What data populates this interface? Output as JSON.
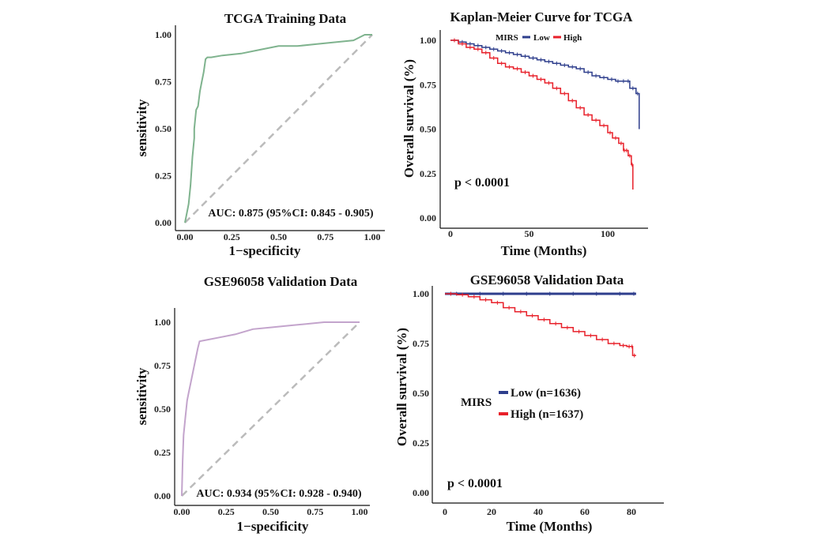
{
  "chart_data": [
    {
      "id": "roc-tcga",
      "type": "line",
      "title": "TCGA Training Data",
      "xlabel": "1−specificity",
      "ylabel": "sensitivity",
      "xlim": [
        0,
        1
      ],
      "ylim": [
        0,
        1
      ],
      "xticks": [
        "0.00",
        "0.25",
        "0.50",
        "0.75",
        "1.00"
      ],
      "yticks": [
        "0.00",
        "0.25",
        "0.50",
        "0.75",
        "1.00"
      ],
      "annotation": "AUC: 0.875 (95%CI: 0.845 - 0.905)",
      "colors": {
        "curve": "#7FB38E",
        "diagonal": "#BBBBBB"
      },
      "curve": {
        "x": [
          0,
          0.01,
          0.02,
          0.03,
          0.04,
          0.05,
          0.05,
          0.06,
          0.07,
          0.08,
          0.09,
          0.1,
          0.11,
          0.12,
          0.14,
          0.2,
          0.3,
          0.4,
          0.5,
          0.6,
          0.7,
          0.8,
          0.9,
          0.96,
          1.0
        ],
        "y": [
          0,
          0.05,
          0.1,
          0.2,
          0.35,
          0.45,
          0.5,
          0.6,
          0.62,
          0.7,
          0.75,
          0.8,
          0.87,
          0.88,
          0.88,
          0.89,
          0.9,
          0.92,
          0.94,
          0.94,
          0.95,
          0.96,
          0.97,
          1.0,
          1.0
        ]
      }
    },
    {
      "id": "km-tcga",
      "type": "line",
      "title": "Kaplan-Meier Curve for TCGA",
      "xlabel": "Time (Months)",
      "ylabel": "Overall survival (%)",
      "xlim": [
        -5,
        125
      ],
      "ylim": [
        0,
        1
      ],
      "xticks": [
        "0",
        "50",
        "100"
      ],
      "xtick_values": [
        0,
        50,
        100
      ],
      "yticks": [
        "0.00",
        "0.25",
        "0.50",
        "0.75",
        "1.00"
      ],
      "pvalue": "p < 0.0001",
      "legend": {
        "title": "MIRS",
        "placement": "top",
        "items": [
          "Low",
          "High"
        ]
      },
      "colors": {
        "Low": "#2E3E8C",
        "High": "#E8202A"
      },
      "series": [
        {
          "name": "Low",
          "x": [
            0,
            5,
            10,
            15,
            20,
            25,
            30,
            35,
            40,
            45,
            50,
            55,
            60,
            65,
            70,
            75,
            80,
            85,
            90,
            95,
            100,
            105,
            108,
            112,
            114,
            118,
            120
          ],
          "y": [
            1.0,
            0.99,
            0.98,
            0.97,
            0.96,
            0.95,
            0.94,
            0.93,
            0.92,
            0.91,
            0.9,
            0.89,
            0.88,
            0.87,
            0.86,
            0.85,
            0.84,
            0.82,
            0.8,
            0.79,
            0.78,
            0.77,
            0.77,
            0.77,
            0.73,
            0.7,
            0.5
          ]
        },
        {
          "name": "High",
          "x": [
            0,
            5,
            10,
            15,
            20,
            25,
            30,
            35,
            40,
            45,
            50,
            55,
            60,
            65,
            70,
            75,
            80,
            85,
            90,
            95,
            100,
            103,
            107,
            110,
            111,
            113,
            115,
            116
          ],
          "y": [
            1.0,
            0.98,
            0.96,
            0.95,
            0.93,
            0.9,
            0.87,
            0.85,
            0.84,
            0.82,
            0.8,
            0.78,
            0.76,
            0.73,
            0.7,
            0.66,
            0.62,
            0.58,
            0.55,
            0.52,
            0.48,
            0.45,
            0.42,
            0.38,
            0.38,
            0.35,
            0.3,
            0.16
          ]
        }
      ]
    },
    {
      "id": "roc-gse",
      "type": "line",
      "title": "GSE96058 Validation Data",
      "xlabel": "1−specificity",
      "ylabel": "sensitivity",
      "xlim": [
        0,
        1
      ],
      "ylim": [
        0,
        1
      ],
      "xticks": [
        "0.00",
        "0.25",
        "0.50",
        "0.75",
        "1.00"
      ],
      "yticks": [
        "0.00",
        "0.25",
        "0.50",
        "0.75",
        "1.00"
      ],
      "annotation": "AUC: 0.934 (95%CI: 0.928 - 0.940)",
      "colors": {
        "curve": "#C3A4CC",
        "diagonal": "#BBBBBB"
      },
      "curve": {
        "x": [
          0,
          0.005,
          0.01,
          0.02,
          0.03,
          0.04,
          0.05,
          0.07,
          0.09,
          0.1,
          0.15,
          0.2,
          0.3,
          0.4,
          0.5,
          0.6,
          0.7,
          0.8,
          0.9,
          1.0
        ],
        "y": [
          0,
          0.2,
          0.35,
          0.45,
          0.55,
          0.6,
          0.65,
          0.75,
          0.85,
          0.89,
          0.9,
          0.91,
          0.93,
          0.96,
          0.97,
          0.98,
          0.99,
          1.0,
          1.0,
          1.0
        ]
      }
    },
    {
      "id": "km-gse",
      "type": "line",
      "title": "GSE96058 Validation Data",
      "xlabel": "Time (Months)",
      "ylabel": "Overall survival (%)",
      "xlim": [
        -5,
        90
      ],
      "ylim": [
        0,
        1
      ],
      "xticks": [
        "0",
        "20",
        "40",
        "60",
        "80"
      ],
      "xtick_values": [
        0,
        20,
        40,
        60,
        80
      ],
      "yticks": [
        "0.00",
        "0.25",
        "0.50",
        "0.75",
        "1.00"
      ],
      "pvalue": "p < 0.0001",
      "legend": {
        "title": "MIRS",
        "placement": "center",
        "items": [
          "Low (n=1636)",
          "High (n=1637)"
        ]
      },
      "colors": {
        "Low": "#2E3E8C",
        "High": "#E8202A"
      },
      "series": [
        {
          "name": "Low (n=1636)",
          "x": [
            0,
            10,
            20,
            30,
            40,
            50,
            60,
            70,
            80,
            82
          ],
          "y": [
            1.0,
            1.0,
            1.0,
            1.0,
            1.0,
            1.0,
            1.0,
            1.0,
            1.0,
            1.0
          ]
        },
        {
          "name": "High (n=1637)",
          "x": [
            0,
            5,
            10,
            15,
            20,
            25,
            30,
            35,
            40,
            45,
            50,
            55,
            60,
            65,
            70,
            75,
            78,
            80,
            80.5,
            82
          ],
          "y": [
            1.0,
            0.995,
            0.985,
            0.97,
            0.955,
            0.93,
            0.91,
            0.89,
            0.87,
            0.85,
            0.83,
            0.81,
            0.79,
            0.77,
            0.75,
            0.74,
            0.735,
            0.735,
            0.69,
            0.69
          ]
        }
      ]
    }
  ]
}
